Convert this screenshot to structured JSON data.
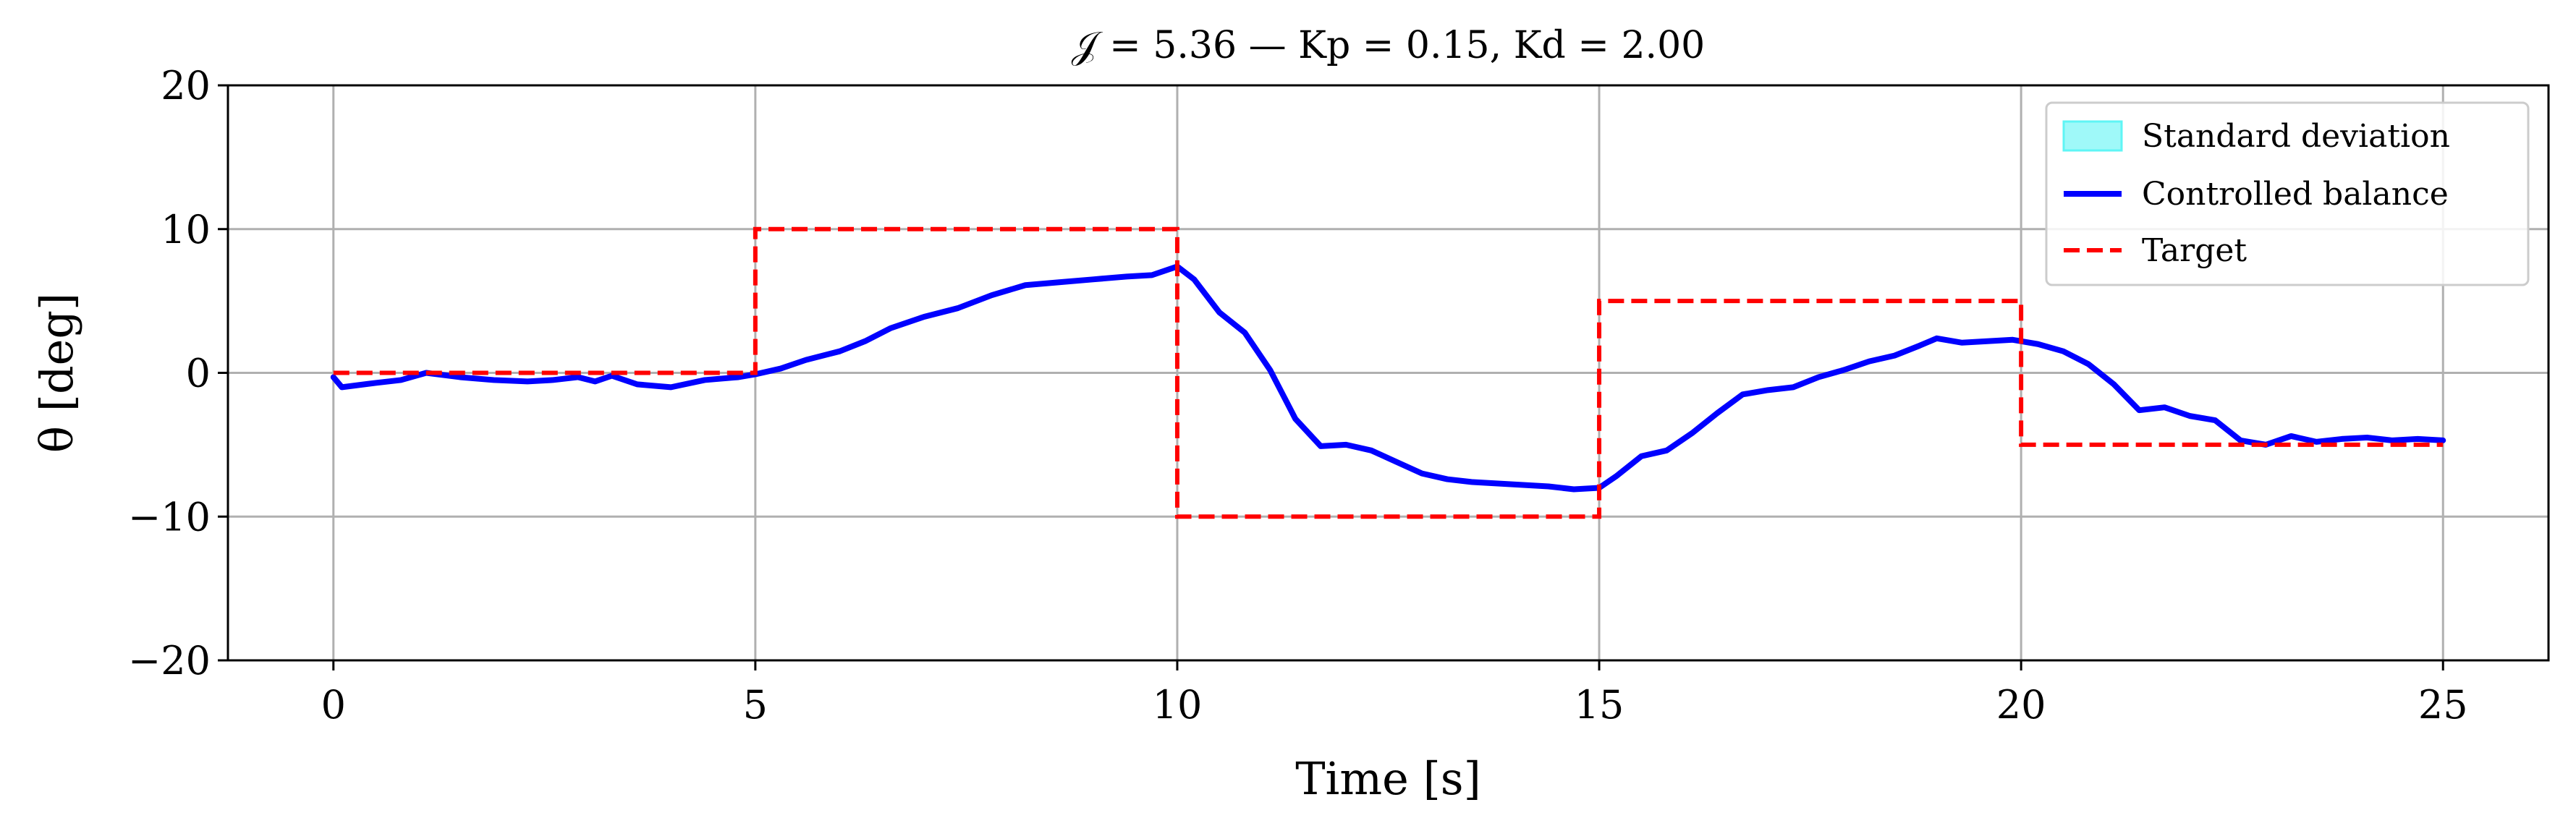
{
  "chart_data": {
    "type": "line",
    "title": "𝒥 = 5.36 — Kp = 0.15, Kd = 2.00",
    "xlabel": "Time [s]",
    "ylabel": "θ [deg]",
    "xlim": [
      -1.25,
      26.25
    ],
    "ylim": [
      -20,
      20
    ],
    "xticks": [
      0,
      5,
      10,
      15,
      20,
      25
    ],
    "yticks": [
      -20,
      -10,
      0,
      10,
      20
    ],
    "xtick_labels": [
      "0",
      "5",
      "10",
      "15",
      "20",
      "25"
    ],
    "ytick_labels": [
      "−20",
      "−10",
      "0",
      "10",
      "20"
    ],
    "grid": true,
    "legend_position": "top-right",
    "series": [
      {
        "name": "Standard deviation",
        "kind": "band",
        "color": "#5ff5f5",
        "x": [],
        "lower": [],
        "upper": []
      },
      {
        "name": "Controlled balance",
        "kind": "line",
        "color": "#0000ff",
        "x": [
          0,
          0.1,
          0.5,
          0.8,
          1.1,
          1.5,
          1.9,
          2.3,
          2.6,
          2.9,
          3.1,
          3.3,
          3.6,
          4.0,
          4.4,
          4.8,
          5.0,
          5.3,
          5.6,
          6.0,
          6.3,
          6.6,
          7.0,
          7.4,
          7.8,
          8.2,
          8.6,
          9.0,
          9.4,
          9.7,
          10.0,
          10.2,
          10.5,
          10.8,
          11.1,
          11.4,
          11.7,
          12.0,
          12.3,
          12.6,
          12.9,
          13.2,
          13.5,
          13.8,
          14.1,
          14.4,
          14.7,
          15.0,
          15.2,
          15.5,
          15.8,
          16.1,
          16.4,
          16.7,
          17.0,
          17.3,
          17.6,
          17.9,
          18.2,
          18.5,
          18.8,
          19.0,
          19.3,
          19.6,
          19.9,
          20.2,
          20.5,
          20.8,
          21.1,
          21.4,
          21.7,
          22.0,
          22.3,
          22.6,
          22.9,
          23.2,
          23.5,
          23.8,
          24.1,
          24.4,
          24.7,
          25.0
        ],
        "y": [
          -0.3,
          -1.0,
          -0.7,
          -0.5,
          0.0,
          -0.3,
          -0.5,
          -0.6,
          -0.5,
          -0.3,
          -0.6,
          -0.2,
          -0.8,
          -1.0,
          -0.5,
          -0.3,
          -0.1,
          0.3,
          0.9,
          1.5,
          2.2,
          3.1,
          3.9,
          4.5,
          5.4,
          6.1,
          6.3,
          6.5,
          6.7,
          6.8,
          7.4,
          6.5,
          4.2,
          2.8,
          0.2,
          -3.2,
          -5.1,
          -5.0,
          -5.4,
          -6.2,
          -7.0,
          -7.4,
          -7.6,
          -7.7,
          -7.8,
          -7.9,
          -8.1,
          -8.0,
          -7.2,
          -5.8,
          -5.4,
          -4.2,
          -2.8,
          -1.5,
          -1.2,
          -1.0,
          -0.3,
          0.2,
          0.8,
          1.2,
          1.9,
          2.4,
          2.1,
          2.2,
          2.3,
          2.0,
          1.5,
          0.6,
          -0.8,
          -2.6,
          -2.4,
          -3.0,
          -3.3,
          -4.7,
          -5.0,
          -4.4,
          -4.8,
          -4.6,
          -4.5,
          -4.7,
          -4.6,
          -4.7
        ]
      },
      {
        "name": "Target",
        "kind": "step",
        "color": "#ff0000",
        "x": [
          0,
          5,
          5,
          10,
          10,
          15,
          15,
          20,
          20,
          25
        ],
        "y": [
          0,
          0,
          10,
          10,
          -10,
          -10,
          5,
          5,
          -5,
          -5
        ]
      }
    ]
  }
}
